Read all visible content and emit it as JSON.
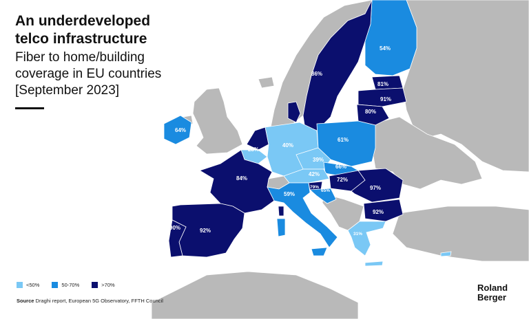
{
  "header": {
    "title_line1": "An underdeveloped",
    "title_line2": "telco infrastructure",
    "subtitle_line1": "Fiber to home/building",
    "subtitle_line2": "coverage in EU countries",
    "subtitle_line3": "[September 2023]"
  },
  "legend": [
    {
      "label": "<50%",
      "color": "#7ac8f5"
    },
    {
      "label": "50-70%",
      "color": "#1a8be0"
    },
    {
      "label": ">70%",
      "color": "#0b0f6e"
    }
  ],
  "source": {
    "label": "Source",
    "text": "Draghi report, European 5G Observatory, FFTH Council"
  },
  "logo": {
    "line1": "Roland",
    "line2": "Berger"
  },
  "colors": {
    "background": "#ffffff",
    "non_eu_land": "#b9b9b9",
    "low": "#7ac8f5",
    "mid": "#1a8be0",
    "high": "#0b0f6e",
    "label_text": "#ffffff"
  },
  "countries": [
    {
      "name": "Finland",
      "value": "54%"
    },
    {
      "name": "Sweden",
      "value": "86%"
    },
    {
      "name": "Estonia",
      "value": "81%"
    },
    {
      "name": "Latvia",
      "value": "91%"
    },
    {
      "name": "Lithuania",
      "value": "80%"
    },
    {
      "name": "Ireland",
      "value": "64%"
    },
    {
      "name": "Belgium",
      "value": "28%"
    },
    {
      "name": "Germany",
      "value": "40%"
    },
    {
      "name": "Poland",
      "value": "61%"
    },
    {
      "name": "Czechia",
      "value": "39%"
    },
    {
      "name": "Slovakia",
      "value": "66%"
    },
    {
      "name": "Austria",
      "value": "42%"
    },
    {
      "name": "Hungary",
      "value": "72%"
    },
    {
      "name": "Romania",
      "value": "97%"
    },
    {
      "name": "France",
      "value": "84%"
    },
    {
      "name": "Italy",
      "value": "59%"
    },
    {
      "name": "Slovenia",
      "value": "79%"
    },
    {
      "name": "Croatia",
      "value": "65%"
    },
    {
      "name": "Bulgaria",
      "value": "92%"
    },
    {
      "name": "Portugal",
      "value": "90%"
    },
    {
      "name": "Spain",
      "value": "92%"
    },
    {
      "name": "Greece",
      "value": "31%"
    }
  ]
}
